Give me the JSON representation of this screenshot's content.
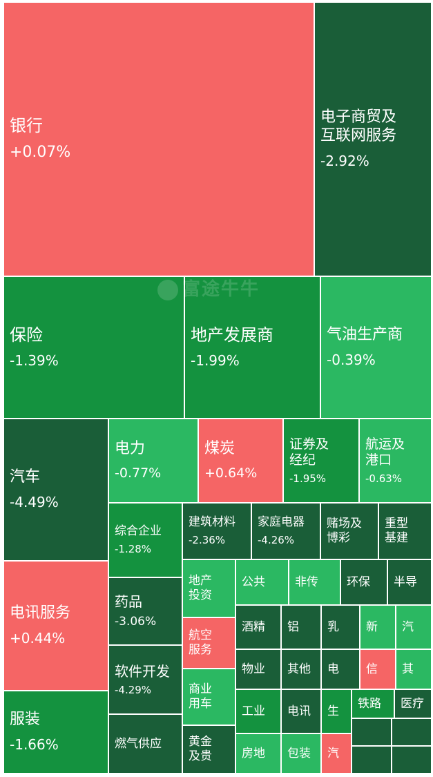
{
  "colors": {
    "red": "#F56565",
    "green": "#14923F",
    "dark_green": "#1A5E38",
    "light_green": "#2BB862"
  },
  "watermark": "富途牛牛",
  "tiles": [
    {
      "id": "yinhang",
      "name": "银行",
      "pct": "+0.07%",
      "color": "red"
    },
    {
      "id": "dianzishangmao",
      "name": "电子商贸及\n互联网服务",
      "pct": "-2.92%",
      "color": "dark_green"
    },
    {
      "id": "baoxian",
      "name": "保险",
      "pct": "-1.39%",
      "color": "green"
    },
    {
      "id": "dichanfazhan",
      "name": "地产发展商",
      "pct": "-1.99%",
      "color": "green"
    },
    {
      "id": "qiyoushengchan",
      "name": "气油生产商",
      "pct": "-0.39%",
      "color": "light_green"
    },
    {
      "id": "qiche",
      "name": "汽车",
      "pct": "-4.49%",
      "color": "dark_green"
    },
    {
      "id": "dianli",
      "name": "电力",
      "pct": "-0.77%",
      "color": "light_green"
    },
    {
      "id": "meitan",
      "name": "煤炭",
      "pct": "+0.64%",
      "color": "red"
    },
    {
      "id": "zhengquan",
      "name": "证券及\n经纪",
      "pct": "-1.95%",
      "color": "green"
    },
    {
      "id": "hangyun",
      "name": "航运及\n港口",
      "pct": "-0.63%",
      "color": "light_green"
    },
    {
      "id": "zonghe",
      "name": "综合企业",
      "pct": "-1.28%",
      "color": "green"
    },
    {
      "id": "jianzhu",
      "name": "建筑材料",
      "pct": "-2.36%",
      "color": "dark_green"
    },
    {
      "id": "jiating",
      "name": "家庭电器",
      "pct": "-4.26%",
      "color": "dark_green"
    },
    {
      "id": "duchang",
      "name": "赌场及\n博彩",
      "pct": "",
      "color": "dark_green"
    },
    {
      "id": "zhongxing",
      "name": "重型\n基建",
      "pct": "",
      "color": "dark_green"
    },
    {
      "id": "dianxun",
      "name": "电讯服务",
      "pct": "+0.44%",
      "color": "red"
    },
    {
      "id": "yaopin",
      "name": "药品",
      "pct": "-3.06%",
      "color": "dark_green"
    },
    {
      "id": "dichantouzi",
      "name": "地产\n投资",
      "pct": "",
      "color": "light_green"
    },
    {
      "id": "gonggong",
      "name": "公共",
      "pct": "",
      "color": "light_green"
    },
    {
      "id": "feichuan",
      "name": "非传",
      "pct": "",
      "color": "light_green"
    },
    {
      "id": "huanbao",
      "name": "环保",
      "pct": "",
      "color": "dark_green"
    },
    {
      "id": "bandao",
      "name": "半导",
      "pct": "",
      "color": "dark_green"
    },
    {
      "id": "hangkong",
      "name": "航空\n服务",
      "pct": "",
      "color": "red"
    },
    {
      "id": "jiujing",
      "name": "酒精",
      "pct": "",
      "color": "dark_green"
    },
    {
      "id": "lv",
      "name": "铝",
      "pct": "",
      "color": "dark_green"
    },
    {
      "id": "ru",
      "name": "乳",
      "pct": "",
      "color": "dark_green"
    },
    {
      "id": "xin",
      "name": "新",
      "pct": "",
      "color": "light_green"
    },
    {
      "id": "qi1",
      "name": "汽",
      "pct": "",
      "color": "light_green"
    },
    {
      "id": "ruanjian",
      "name": "软件开发",
      "pct": "-4.29%",
      "color": "dark_green"
    },
    {
      "id": "wuye",
      "name": "物业",
      "pct": "",
      "color": "dark_green"
    },
    {
      "id": "qita",
      "name": "其他",
      "pct": "",
      "color": "dark_green"
    },
    {
      "id": "dian",
      "name": "电",
      "pct": "",
      "color": "dark_green"
    },
    {
      "id": "xinred",
      "name": "信",
      "pct": "",
      "color": "red"
    },
    {
      "id": "qi2",
      "name": "其",
      "pct": "",
      "color": "light_green"
    },
    {
      "id": "shangye",
      "name": "商业\n用车",
      "pct": "",
      "color": "light_green"
    },
    {
      "id": "gongye",
      "name": "工业",
      "pct": "",
      "color": "green"
    },
    {
      "id": "dianxun2",
      "name": "电讯",
      "pct": "",
      "color": "dark_green"
    },
    {
      "id": "sheng",
      "name": "生",
      "pct": "",
      "color": "green"
    },
    {
      "id": "tielu",
      "name": "铁路",
      "pct": "",
      "color": "green"
    },
    {
      "id": "yiliao",
      "name": "医疗",
      "pct": "",
      "color": "dark_green"
    },
    {
      "id": "fuzhuang",
      "name": "服装",
      "pct": "-1.66%",
      "color": "green"
    },
    {
      "id": "ranqi",
      "name": "燃气供应",
      "pct": "",
      "color": "dark_green"
    },
    {
      "id": "huangjin",
      "name": "黄金\n及贵",
      "pct": "",
      "color": "dark_green"
    },
    {
      "id": "fangdi",
      "name": "房地",
      "pct": "",
      "color": "light_green"
    },
    {
      "id": "baozhuang",
      "name": "包装",
      "pct": "",
      "color": "light_green"
    },
    {
      "id": "qi3",
      "name": "汽",
      "pct": "",
      "color": "red"
    },
    {
      "id": "blank1",
      "name": "",
      "pct": "",
      "color": "dark_green"
    },
    {
      "id": "blank2",
      "name": "",
      "pct": "",
      "color": "dark_green"
    },
    {
      "id": "blank3",
      "name": "",
      "pct": "",
      "color": "dark_green"
    },
    {
      "id": "blank4",
      "name": "",
      "pct": "",
      "color": "dark_green"
    },
    {
      "id": "blank5",
      "name": "",
      "pct": "",
      "color": "dark_green"
    },
    {
      "id": "blank6",
      "name": "",
      "pct": "",
      "color": "dark_green"
    }
  ]
}
